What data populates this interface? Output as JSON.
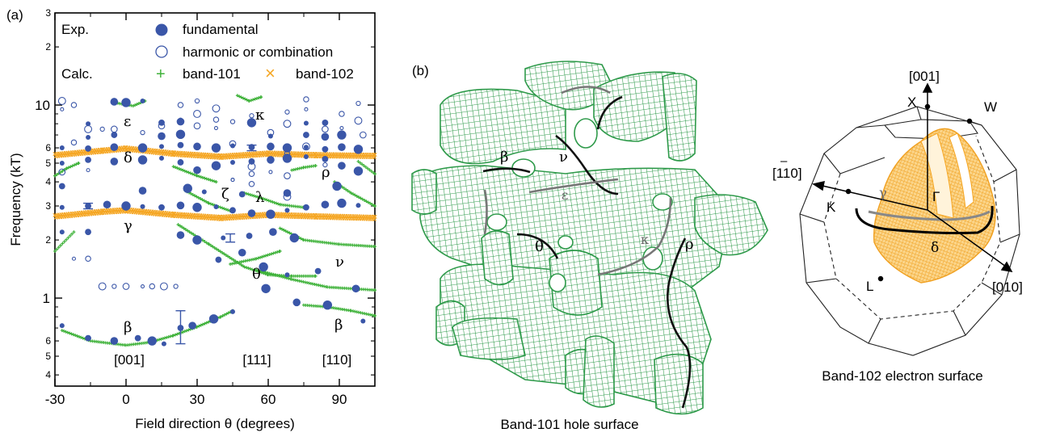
{
  "panel_a": {
    "label": "(a)",
    "ylabel": "Frequency (kT)",
    "xlabel": "Field direction θ (degrees)",
    "y_major_ticks": [
      "1",
      "10"
    ],
    "y_minor_ticks": [
      "2",
      "3",
      "4",
      "5",
      "6",
      "2",
      "3",
      "4",
      "5",
      "6"
    ],
    "y_top_tick": "3",
    "x_ticks": [
      "-30",
      "0",
      "30",
      "60",
      "90"
    ],
    "directions": [
      "[001]",
      "[111]",
      "[110]"
    ],
    "legend": {
      "exp": "Exp.",
      "calc": "Calc.",
      "fundamental": "fundamental",
      "harmonic": "harmonic or combination",
      "band101": "band-101",
      "band102": "band-102",
      "plus_glyph": "+",
      "cross_glyph": "×"
    },
    "greek": {
      "epsilon": "ε",
      "kappa": "κ",
      "delta": "δ",
      "rho": "ρ",
      "zeta": "ζ",
      "lambda": "λ",
      "gamma": "γ",
      "nu": "ν",
      "theta": "θ",
      "beta": "β",
      "beta2": "β"
    }
  },
  "panel_b": {
    "label": "(b)",
    "caption": "Band-101 hole surface",
    "greek": {
      "beta": "β",
      "nu": "ν",
      "epsilon": "ε",
      "theta": "θ",
      "kappa": "κ",
      "rho": "ρ"
    }
  },
  "panel_c": {
    "caption": "Band-102 electron surface",
    "dir_001": "[001]",
    "dir_110_bar": "–",
    "dir_110": "[110]",
    "dir_010": "[010]",
    "X": "X",
    "W": "W",
    "K": "K",
    "Gamma": "Γ",
    "L": "L",
    "gamma": "γ",
    "delta": "δ"
  },
  "colors": {
    "exp": "#3a56a8",
    "band101": "#3fb23a",
    "band102": "#f5a623",
    "surface101": "#2e9a4a"
  },
  "chart_data": {
    "type": "scatter",
    "title": "",
    "xlabel": "Field direction θ (degrees)",
    "ylabel": "Frequency (kT)",
    "xlim": [
      -30,
      105
    ],
    "ylim": [
      0.35,
      30
    ],
    "y_scale": "log",
    "legend_position": "top-left",
    "direction_markers": [
      {
        "label": "[001]",
        "x": 0
      },
      {
        "label": "[111]",
        "x": 54.7
      },
      {
        "label": "[110]",
        "x": 90
      }
    ],
    "series": [
      {
        "name": "fundamental",
        "group": "Exp.",
        "marker": "filled-circle",
        "points": [
          [
            -27,
            0.72
          ],
          [
            -16,
            0.62
          ],
          [
            -5,
            0.6
          ],
          [
            11,
            0.6
          ],
          [
            16,
            0.58
          ],
          [
            23,
            0.7
          ],
          [
            28,
            0.72
          ],
          [
            37,
            0.78
          ],
          [
            45,
            0.85
          ],
          [
            5,
            0.62
          ],
          [
            72,
            0.95
          ],
          [
            85,
            0.92
          ],
          [
            100,
            0.76
          ],
          [
            39,
            1.58
          ],
          [
            49,
            1.72
          ],
          [
            58,
            1.45
          ],
          [
            68,
            1.32
          ],
          [
            81,
            1.38
          ],
          [
            97,
            1.12
          ],
          [
            59,
            1.12
          ],
          [
            -27,
            2.2
          ],
          [
            -16,
            2.2
          ],
          [
            23,
            2.12
          ],
          [
            30,
            2.0
          ],
          [
            41,
            2.05
          ],
          [
            52,
            2.1
          ],
          [
            62,
            2.2
          ],
          [
            71,
            2.05
          ],
          [
            -27,
            2.95
          ],
          [
            -16,
            3.0
          ],
          [
            -8,
            3.05
          ],
          [
            0,
            3.0
          ],
          [
            7,
            2.98
          ],
          [
            15,
            2.95
          ],
          [
            23,
            3.02
          ],
          [
            30,
            2.95
          ],
          [
            38,
            2.97
          ],
          [
            45,
            2.85
          ],
          [
            53,
            2.75
          ],
          [
            61,
            2.72
          ],
          [
            68,
            2.85
          ],
          [
            76,
            2.95
          ],
          [
            84,
            3.05
          ],
          [
            91,
            3.1
          ],
          [
            98,
            3.02
          ],
          [
            -27,
            3.8
          ],
          [
            7,
            3.6
          ],
          [
            26,
            3.7
          ],
          [
            33,
            3.55
          ],
          [
            49,
            3.45
          ],
          [
            68,
            3.5
          ],
          [
            89,
            3.8
          ],
          [
            -27,
            5.0
          ],
          [
            -16,
            5.2
          ],
          [
            -5,
            5.1
          ],
          [
            7,
            5.2
          ],
          [
            15,
            5.3
          ],
          [
            23,
            5.05
          ],
          [
            30,
            4.6
          ],
          [
            38,
            4.85
          ],
          [
            45,
            5.05
          ],
          [
            53,
            5.1
          ],
          [
            61,
            5.2
          ],
          [
            68,
            5.3
          ],
          [
            76,
            5.4
          ],
          [
            84,
            5.25
          ],
          [
            91,
            4.85
          ],
          [
            98,
            4.55
          ],
          [
            -27,
            6.0
          ],
          [
            -16,
            5.95
          ],
          [
            -5,
            6.05
          ],
          [
            7,
            6.0
          ],
          [
            15,
            6.1
          ],
          [
            23,
            6.2
          ],
          [
            30,
            6.1
          ],
          [
            38,
            6.0
          ],
          [
            45,
            6.15
          ],
          [
            53,
            6.05
          ],
          [
            61,
            6.1
          ],
          [
            68,
            6.0
          ],
          [
            76,
            6.05
          ],
          [
            84,
            5.9
          ],
          [
            91,
            6.05
          ],
          [
            98,
            5.9
          ],
          [
            -16,
            6.8
          ],
          [
            -5,
            7.0
          ],
          [
            15,
            6.9
          ],
          [
            23,
            7.05
          ],
          [
            61,
            6.9
          ],
          [
            76,
            7.0
          ],
          [
            84,
            6.85
          ],
          [
            91,
            7.0
          ],
          [
            -16,
            8.0
          ],
          [
            15,
            8.1
          ],
          [
            23,
            8.2
          ],
          [
            53,
            8.1
          ],
          [
            76,
            8.05
          ],
          [
            84,
            8.1
          ],
          [
            -5,
            10.4
          ],
          [
            0,
            10.3
          ],
          [
            7,
            10.5
          ]
        ]
      },
      {
        "name": "harmonic or combination",
        "group": "Exp.",
        "marker": "open-circle",
        "points": [
          [
            -22,
            1.6
          ],
          [
            -16,
            1.6
          ],
          [
            -10,
            1.15
          ],
          [
            -5,
            1.15
          ],
          [
            0,
            1.15
          ],
          [
            7,
            1.15
          ],
          [
            11,
            1.15
          ],
          [
            16,
            1.15
          ],
          [
            21,
            1.15
          ],
          [
            -27,
            4.5
          ],
          [
            -16,
            4.6
          ],
          [
            -22,
            6.4
          ],
          [
            -16,
            7.5
          ],
          [
            -10,
            7.5
          ],
          [
            -5,
            7.5
          ],
          [
            -27,
            9.5
          ],
          [
            -22,
            10.0
          ],
          [
            -27,
            10.5
          ],
          [
            7,
            7.2
          ],
          [
            15,
            7.8
          ],
          [
            23,
            8.4
          ],
          [
            23,
            10.0
          ],
          [
            30,
            9.0
          ],
          [
            30,
            10.5
          ],
          [
            30,
            7.8
          ],
          [
            38,
            7.6
          ],
          [
            38,
            8.4
          ],
          [
            38,
            9.6
          ],
          [
            45,
            8.2
          ],
          [
            45,
            6.3
          ],
          [
            45,
            4.1
          ],
          [
            53,
            4.4
          ],
          [
            53,
            4.8
          ],
          [
            53,
            8.8
          ],
          [
            61,
            7.2
          ],
          [
            61,
            4.5
          ],
          [
            68,
            5.6
          ],
          [
            68,
            8.0
          ],
          [
            68,
            9.2
          ],
          [
            68,
            4.3
          ],
          [
            76,
            9.5
          ],
          [
            76,
            10.7
          ],
          [
            76,
            6.1
          ],
          [
            84,
            4.9
          ],
          [
            84,
            7.5
          ],
          [
            91,
            7.6
          ],
          [
            91,
            9.0
          ],
          [
            98,
            8.3
          ],
          [
            98,
            10.2
          ],
          [
            100,
            7.0
          ],
          [
            45,
            4.1
          ],
          [
            53,
            3.9
          ],
          [
            68,
            3.35
          ]
        ]
      },
      {
        "name": "band-101",
        "group": "Calc.",
        "marker": "plus",
        "curves": [
          {
            "label": "β",
            "x": [
              -27,
              -15,
              0,
              10,
              20,
              30,
              40,
              45
            ],
            "y": [
              0.68,
              0.6,
              0.57,
              0.59,
              0.64,
              0.71,
              0.8,
              0.86
            ]
          },
          {
            "label": "β",
            "x": [
              75,
              85,
              95,
              105
            ],
            "y": [
              0.92,
              0.9,
              0.86,
              0.81
            ]
          },
          {
            "label": "θ",
            "x": [
              22,
              35,
              50,
              60,
              70,
              80
            ],
            "y": [
              2.4,
              1.9,
              1.45,
              1.32,
              1.3,
              1.3
            ]
          },
          {
            "label": "θ",
            "x": [
              44,
              55,
              65
            ],
            "y": [
              1.5,
              1.6,
              1.75
            ]
          },
          {
            "label": "ν",
            "x": [
              55,
              70,
              85,
              105
            ],
            "y": [
              1.4,
              1.25,
              1.14,
              1.1
            ]
          },
          {
            "label": "ν",
            "x": [
              65,
              75,
              90,
              105
            ],
            "y": [
              2.3,
              2.0,
              1.9,
              1.85
            ]
          },
          {
            "label": "λ",
            "x": [
              25,
              35,
              45
            ],
            "y": [
              3.6,
              3.1,
              2.8
            ]
          },
          {
            "label": "λ",
            "x": [
              50,
              57,
              65,
              75
            ],
            "y": [
              3.5,
              3.3,
              3.05,
              2.95
            ]
          },
          {
            "label": "ρ",
            "x": [
              70,
              75,
              80
            ],
            "y": [
              4.6,
              4.75,
              4.85
            ]
          },
          {
            "label": "ρ",
            "x": [
              88,
              95,
              105
            ],
            "y": [
              4.0,
              3.5,
              3.0
            ]
          },
          {
            "label": "ζ",
            "x": [
              20,
              30,
              38
            ],
            "y": [
              4.8,
              4.3,
              4.0
            ]
          },
          {
            "label": "ε",
            "x": [
              -5,
              3,
              8
            ],
            "y": [
              10.3,
              9.9,
              10.5
            ]
          },
          {
            "label": "κ",
            "x": [
              47,
              52,
              57
            ],
            "y": [
              11.2,
              10.5,
              11.0
            ]
          },
          {
            "label": "",
            "x": [
              -30,
              -22
            ],
            "y": [
              1.75,
              2.2
            ]
          },
          {
            "label": "",
            "x": [
              -30,
              -25,
              -20
            ],
            "y": [
              4.3,
              4.7,
              5.0
            ]
          },
          {
            "label": "",
            "x": [
              98,
              105
            ],
            "y": [
              5.1,
              4.4
            ]
          }
        ]
      },
      {
        "name": "band-102",
        "group": "Calc.",
        "marker": "cross",
        "curves": [
          {
            "label": "δ",
            "x": [
              -30,
              -10,
              0,
              20,
              40,
              60,
              80,
              105
            ],
            "y": [
              5.5,
              5.8,
              5.95,
              5.6,
              5.4,
              5.6,
              5.5,
              5.45
            ]
          },
          {
            "label": "γ",
            "x": [
              -30,
              -10,
              0,
              20,
              40,
              60,
              80,
              105
            ],
            "y": [
              2.65,
              2.8,
              2.85,
              2.7,
              2.6,
              2.7,
              2.65,
              2.6
            ]
          }
        ]
      }
    ],
    "error_bars": [
      {
        "x": -16,
        "y": 3.0,
        "low": 2.9,
        "high": 3.1
      },
      {
        "x": 23,
        "y": 0.7,
        "low": 0.58,
        "high": 0.86
      },
      {
        "x": 44,
        "y": 2.05,
        "low": 1.95,
        "high": 2.15
      },
      {
        "x": 53,
        "y": 6.0,
        "low": 5.8,
        "high": 6.2
      }
    ]
  }
}
